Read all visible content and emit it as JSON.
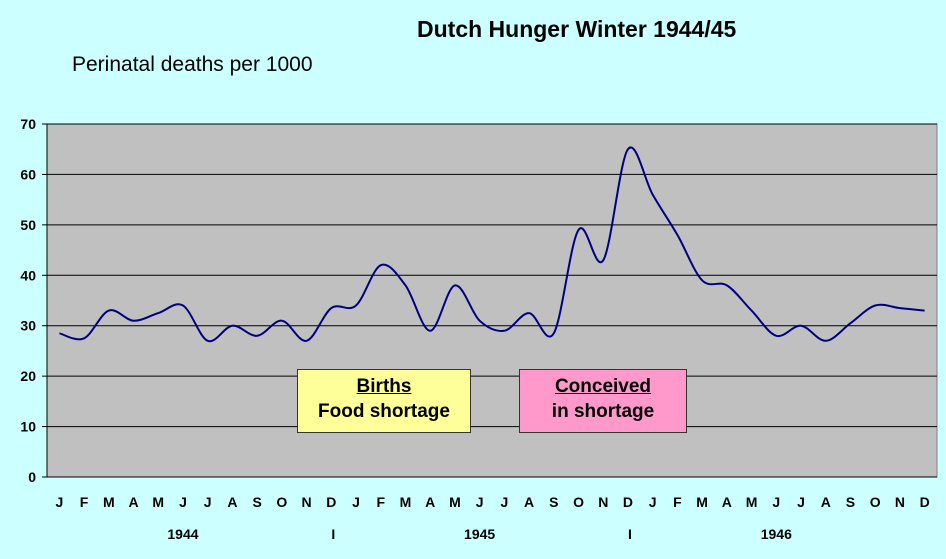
{
  "chart_data": {
    "type": "line",
    "title": "Dutch Hunger Winter 1944/45",
    "ylabel": "Perinatal deaths per 1000",
    "ylim": [
      0,
      70
    ],
    "yticks": [
      0,
      10,
      20,
      30,
      40,
      50,
      60,
      70
    ],
    "grid": true,
    "month_labels": [
      "J",
      "F",
      "M",
      "A",
      "M",
      "J",
      "J",
      "A",
      "S",
      "O",
      "N",
      "D",
      "J",
      "F",
      "M",
      "A",
      "M",
      "J",
      "J",
      "A",
      "S",
      "O",
      "N",
      "D",
      "J",
      "F",
      "M",
      "A",
      "M",
      "J",
      "J",
      "A",
      "S",
      "O",
      "N",
      "D"
    ],
    "year_labels": [
      "1944",
      "1945",
      "1946"
    ],
    "separator_label": "I",
    "series": [
      {
        "color": "#000080",
        "values": [
          28.5,
          27.5,
          33,
          31,
          32.5,
          34,
          27,
          30,
          28,
          31,
          27,
          33.5,
          34,
          42,
          38,
          29,
          38,
          31,
          29,
          32.5,
          28.5,
          49,
          43,
          65,
          56,
          48,
          39,
          38,
          33,
          28,
          30,
          27,
          30.5,
          34,
          33.5,
          33
        ]
      }
    ],
    "annotations": [
      {
        "heading": "Births",
        "text": "Food shortage",
        "color": "#ffff99"
      },
      {
        "heading": "Conceived ",
        "text": "in shortage",
        "color": "#ff99cc"
      }
    ]
  }
}
